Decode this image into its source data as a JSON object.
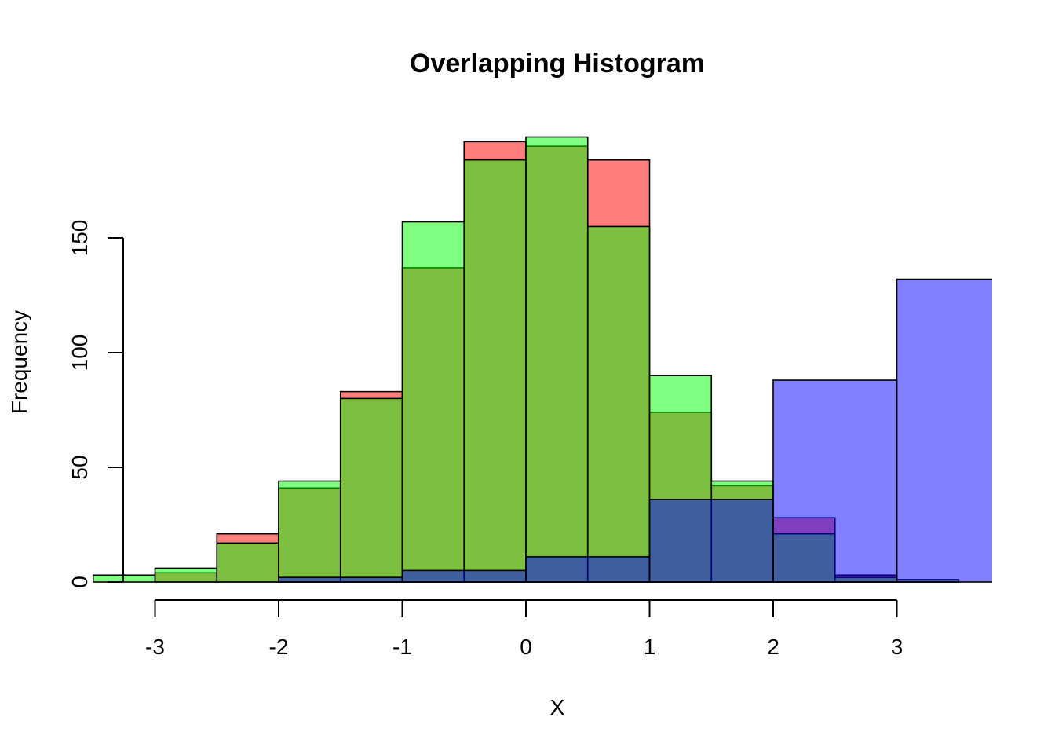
{
  "chart_data": {
    "type": "histogram",
    "title": "Overlapping Histogram",
    "xlabel": "X",
    "ylabel": "Frequency",
    "xlim": [
      -3.25,
      3.8
    ],
    "ylim": [
      0,
      193
    ],
    "x_ticks": [
      -3,
      -2,
      -1,
      0,
      1,
      2,
      3
    ],
    "y_ticks": [
      0,
      50,
      100,
      150
    ],
    "grid": false,
    "legend": "none",
    "series": [
      {
        "color": "#ff0000",
        "opacity": 0.5,
        "bins": [
          {
            "x0": -3.0,
            "x1": -2.5,
            "count": 4
          },
          {
            "x0": -2.5,
            "x1": -2.0,
            "count": 21
          },
          {
            "x0": -2.0,
            "x1": -1.5,
            "count": 41
          },
          {
            "x0": -1.5,
            "x1": -1.0,
            "count": 83
          },
          {
            "x0": -1.0,
            "x1": -0.5,
            "count": 137
          },
          {
            "x0": -0.5,
            "x1": 0.0,
            "count": 192
          },
          {
            "x0": 0.0,
            "x1": 0.5,
            "count": 190
          },
          {
            "x0": 0.5,
            "x1": 1.0,
            "count": 184
          },
          {
            "x0": 1.0,
            "x1": 1.5,
            "count": 74
          },
          {
            "x0": 1.5,
            "x1": 2.0,
            "count": 42
          },
          {
            "x0": 2.0,
            "x1": 2.5,
            "count": 28
          },
          {
            "x0": 2.5,
            "x1": 3.0,
            "count": 3
          },
          {
            "x0": 3.0,
            "x1": 3.5,
            "count": 1
          }
        ]
      },
      {
        "color": "#00ff00",
        "opacity": 0.5,
        "bins": [
          {
            "x0": -3.5,
            "x1": -3.0,
            "count": 3
          },
          {
            "x0": -3.0,
            "x1": -2.5,
            "count": 6
          },
          {
            "x0": -2.5,
            "x1": -2.0,
            "count": 17
          },
          {
            "x0": -2.0,
            "x1": -1.5,
            "count": 44
          },
          {
            "x0": -1.5,
            "x1": -1.0,
            "count": 80
          },
          {
            "x0": -1.0,
            "x1": -0.5,
            "count": 157
          },
          {
            "x0": -0.5,
            "x1": 0.0,
            "count": 184
          },
          {
            "x0": 0.0,
            "x1": 0.5,
            "count": 194
          },
          {
            "x0": 0.5,
            "x1": 1.0,
            "count": 155
          },
          {
            "x0": 1.0,
            "x1": 1.5,
            "count": 90
          },
          {
            "x0": 1.5,
            "x1": 2.0,
            "count": 44
          },
          {
            "x0": 2.0,
            "x1": 2.5,
            "count": 21
          },
          {
            "x0": 2.5,
            "x1": 3.0,
            "count": 2
          },
          {
            "x0": 3.0,
            "x1": 3.5,
            "count": 1
          }
        ]
      },
      {
        "color": "#0000ff",
        "opacity": 0.5,
        "bins": [
          {
            "x0": -2.0,
            "x1": -1.0,
            "count": 2
          },
          {
            "x0": -1.0,
            "x1": 0.0,
            "count": 5
          },
          {
            "x0": 0.0,
            "x1": 1.0,
            "count": 11
          },
          {
            "x0": 1.0,
            "x1": 2.0,
            "count": 36
          },
          {
            "x0": 2.0,
            "x1": 3.0,
            "count": 88
          },
          {
            "x0": 3.0,
            "x1": 4.0,
            "count": 132
          }
        ]
      }
    ]
  }
}
